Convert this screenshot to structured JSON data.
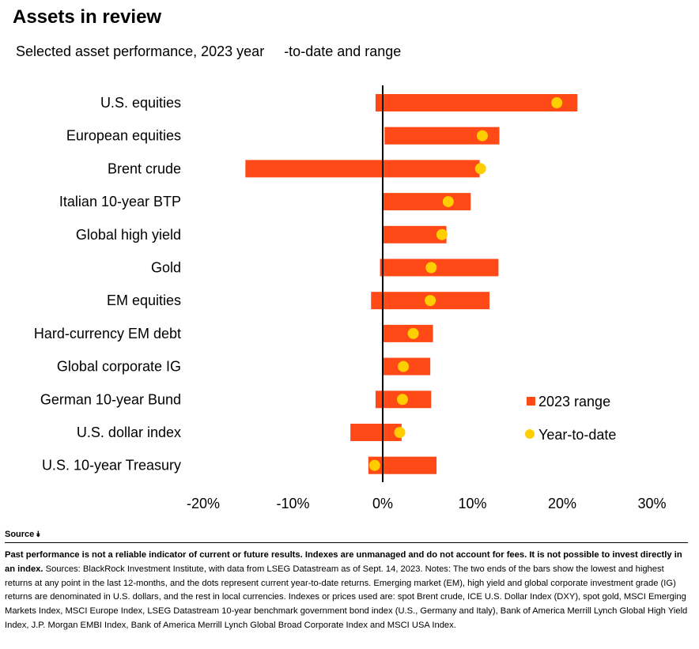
{
  "chart_data": {
    "type": "bar",
    "title": "Assets in review",
    "subtitle": "Selected asset performance, 2023 year     -to-date and range",
    "categories": [
      "U.S. equities",
      "European equities",
      "Brent crude",
      "Italian 10-year BTP",
      "Global high yield",
      "Gold",
      "EM equities",
      "Hard-currency EM debt",
      "Global corporate IG",
      "German 10-year Bund",
      "U.S. dollar index",
      "U.S. 10-year Treasury"
    ],
    "series": [
      {
        "name": "2023 range",
        "low": [
          -0.8,
          0.2,
          -15.3,
          0.0,
          0.0,
          -0.3,
          -1.3,
          0.0,
          0.0,
          -0.8,
          -3.6,
          -1.6
        ],
        "high": [
          21.7,
          13.0,
          10.8,
          9.8,
          7.1,
          12.9,
          11.9,
          5.6,
          5.3,
          5.4,
          2.1,
          6.0
        ]
      },
      {
        "name": "Year-to-date",
        "values": [
          19.4,
          11.1,
          10.9,
          7.3,
          6.6,
          5.4,
          5.3,
          3.4,
          2.3,
          2.2,
          1.9,
          -0.9
        ]
      }
    ],
    "xlim": [
      -20,
      30
    ],
    "xticks": [
      "-20%",
      "-10%",
      "0%",
      "10%",
      "20%",
      "30%"
    ],
    "xtick_values": [
      -20,
      -10,
      0,
      10,
      20,
      30
    ],
    "grid": false,
    "legend_position": "right",
    "colors": {
      "range": "#ff4a17",
      "ytd": "#ffce00",
      "axis": "#000000"
    }
  },
  "footer": {
    "source_label": "Source",
    "disclaimer_bold": "Past performance is not a reliable indicator of current or future results. Indexes are unmanaged and do not account for fees. It is not possible to invest directly in an index.",
    "disclaimer_text": " Sources: BlackRock Investment Institute, with data from LSEG Datastream as of Sept. 14, 2023. Notes: The two ends of the bars show the lowest and highest returns at any point in the last 12-months, and the dots represent current year-to-date returns. Emerging market (EM), high yield and global corporate investment grade (IG) returns are denominated in U.S. dollars, and the rest in local currencies. Indexes or prices used are: spot Brent crude, ICE U.S. Dollar Index (DXY), spot gold, MSCI Emerging Markets Index, MSCI Europe Index, LSEG Datastream 10-year benchmark government bond index (U.S., Germany and Italy), Bank of America Merrill Lynch Global High Yield Index, J.P. Morgan EMBI Index, Bank of America Merrill Lynch Global Broad Corporate Index and MSCI USA Index."
  }
}
